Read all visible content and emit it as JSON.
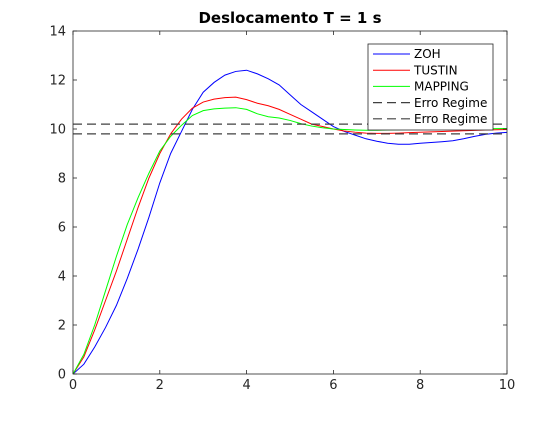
{
  "chart_data": {
    "type": "line",
    "title": "Deslocamento T = 1 s",
    "xlabel": "",
    "ylabel": "",
    "xlim": [
      0,
      10
    ],
    "ylim": [
      0,
      14
    ],
    "xticks": [
      0,
      2,
      4,
      6,
      8,
      10
    ],
    "yticks": [
      0,
      2,
      4,
      6,
      8,
      10,
      12,
      14
    ],
    "grid": false,
    "legend_position": "top-right",
    "series": [
      {
        "name": "ZOH",
        "color": "#0000ff",
        "style": "solid",
        "x": [
          0,
          0.25,
          0.5,
          0.75,
          1.0,
          1.25,
          1.5,
          1.75,
          2.0,
          2.25,
          2.5,
          2.75,
          3.0,
          3.25,
          3.5,
          3.75,
          4.0,
          4.25,
          4.5,
          4.75,
          5.0,
          5.25,
          5.5,
          5.75,
          6.0,
          6.25,
          6.5,
          6.75,
          7.0,
          7.25,
          7.5,
          7.75,
          8.0,
          8.25,
          8.5,
          8.75,
          9.0,
          9.25,
          9.5,
          9.75,
          10.0
        ],
        "y": [
          0,
          0.4,
          1.1,
          1.9,
          2.8,
          3.9,
          5.1,
          6.4,
          7.8,
          9.0,
          9.9,
          10.8,
          11.5,
          11.9,
          12.2,
          12.35,
          12.4,
          12.25,
          12.05,
          11.8,
          11.4,
          11.0,
          10.7,
          10.4,
          10.1,
          9.9,
          9.75,
          9.6,
          9.5,
          9.42,
          9.38,
          9.38,
          9.42,
          9.45,
          9.48,
          9.52,
          9.6,
          9.7,
          9.78,
          9.83,
          9.86
        ]
      },
      {
        "name": "TUSTIN",
        "color": "#ff0000",
        "style": "solid",
        "x": [
          0,
          0.25,
          0.5,
          0.75,
          1.0,
          1.25,
          1.5,
          1.75,
          2.0,
          2.25,
          2.5,
          2.75,
          3.0,
          3.25,
          3.5,
          3.75,
          4.0,
          4.25,
          4.5,
          4.75,
          5.0,
          5.25,
          5.5,
          5.75,
          6.0,
          6.25,
          6.5,
          6.75,
          7.0,
          7.25,
          7.5,
          7.75,
          8.0,
          8.5,
          9.0,
          9.5,
          10.0
        ],
        "y": [
          0,
          0.7,
          1.8,
          3.0,
          4.2,
          5.5,
          6.8,
          8.0,
          9.0,
          9.8,
          10.4,
          10.85,
          11.1,
          11.22,
          11.28,
          11.3,
          11.2,
          11.05,
          10.95,
          10.8,
          10.6,
          10.4,
          10.2,
          10.1,
          10.0,
          9.92,
          9.87,
          9.83,
          9.82,
          9.82,
          9.83,
          9.85,
          9.87,
          9.9,
          9.93,
          9.96,
          9.98
        ]
      },
      {
        "name": "MAPPING",
        "color": "#00ff00",
        "style": "solid",
        "x": [
          0,
          0.25,
          0.5,
          0.75,
          1.0,
          1.25,
          1.5,
          1.75,
          2.0,
          2.25,
          2.5,
          2.75,
          3.0,
          3.25,
          3.5,
          3.75,
          4.0,
          4.25,
          4.5,
          4.75,
          5.0,
          5.25,
          5.5,
          5.75,
          6.0,
          6.25,
          6.5,
          6.75,
          7.0,
          7.25,
          7.5,
          7.75,
          8.0,
          8.5,
          9.0,
          9.5,
          10.0
        ],
        "y": [
          0,
          0.8,
          2.0,
          3.4,
          4.8,
          6.1,
          7.2,
          8.2,
          9.1,
          9.7,
          10.15,
          10.55,
          10.75,
          10.82,
          10.85,
          10.87,
          10.8,
          10.62,
          10.5,
          10.45,
          10.35,
          10.22,
          10.12,
          10.05,
          10.0,
          9.98,
          9.96,
          9.95,
          9.95,
          9.96,
          9.97,
          9.98,
          9.98,
          9.99,
          10.0,
          10.01,
          10.02
        ]
      },
      {
        "name": "Erro Regime",
        "color": "#404040",
        "style": "dashed",
        "x": [
          0,
          10
        ],
        "y": [
          10.2,
          10.2
        ]
      },
      {
        "name": "Erro Regime",
        "color": "#404040",
        "style": "dashed",
        "x": [
          0,
          10
        ],
        "y": [
          9.8,
          9.8
        ]
      }
    ]
  }
}
